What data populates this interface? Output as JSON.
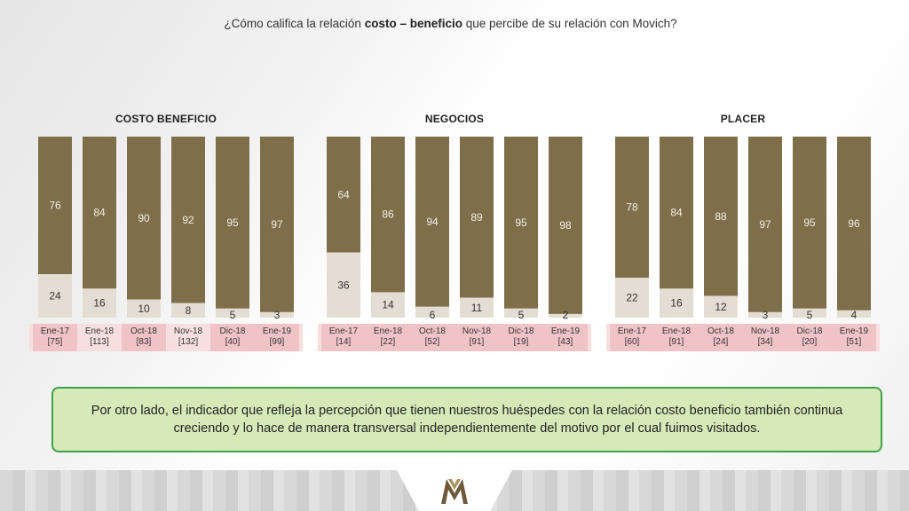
{
  "title": {
    "prefix": "¿Cómo califica la relación ",
    "bold": "costo – beneficio",
    "suffix": " que percibe de su relación con Movich?"
  },
  "note": "Por otro lado, el indicador que refleja la percepción que tienen nuestros huéspedes con la relación costo beneficio también continua creciendo y lo hace de manera transversal independientemente del motivo por el cual fuimos visitados.",
  "footer_logo": "M-logo",
  "colors": {
    "top_segment": "#7e6e4a",
    "bottom_segment": "#e4ddd3",
    "label_band": "#f7dfe0",
    "label_band_dark": "#f0c4c7",
    "note_bg": "#d5eab8",
    "note_border": "#3ea34a"
  },
  "chart_data": [
    {
      "type": "bar",
      "stacked": true,
      "title": "COSTO BENEFICIO",
      "categories": [
        "Ene-17",
        "Ene-18",
        "Oct-18",
        "Nov-18",
        "Dic-18",
        "Ene-19"
      ],
      "bases": [
        "[75]",
        "[113]",
        "[83]",
        "[132]",
        "[40]",
        "[99]"
      ],
      "series": [
        {
          "values": [
            24,
            16,
            10,
            8,
            5,
            3
          ]
        },
        {
          "values": [
            76,
            84,
            90,
            92,
            95,
            97
          ]
        }
      ],
      "ylim": [
        0,
        100
      ]
    },
    {
      "type": "bar",
      "stacked": true,
      "title": "NEGOCIOS",
      "categories": [
        "Ene-17",
        "Ene-18",
        "Oct-18",
        "Nov-18",
        "Dic-18",
        "Ene-19"
      ],
      "bases": [
        "[14]",
        "[22]",
        "[52]",
        "[91]",
        "[19]",
        "[43]"
      ],
      "series": [
        {
          "values": [
            36,
            14,
            6,
            11,
            5,
            2
          ]
        },
        {
          "values": [
            64,
            86,
            94,
            89,
            95,
            98
          ]
        }
      ],
      "ylim": [
        0,
        100
      ]
    },
    {
      "type": "bar",
      "stacked": true,
      "title": "PLACER",
      "categories": [
        "Ene-17",
        "Ene-18",
        "Oct-18",
        "Nov-18",
        "Dic-18",
        "Ene-19"
      ],
      "bases": [
        "[60]",
        "[91]",
        "[24]",
        "[34]",
        "[20]",
        "[51]"
      ],
      "series": [
        {
          "values": [
            22,
            16,
            12,
            3,
            5,
            4
          ]
        },
        {
          "values": [
            78,
            84,
            88,
            97,
            95,
            96
          ]
        }
      ],
      "ylim": [
        0,
        100
      ]
    }
  ]
}
